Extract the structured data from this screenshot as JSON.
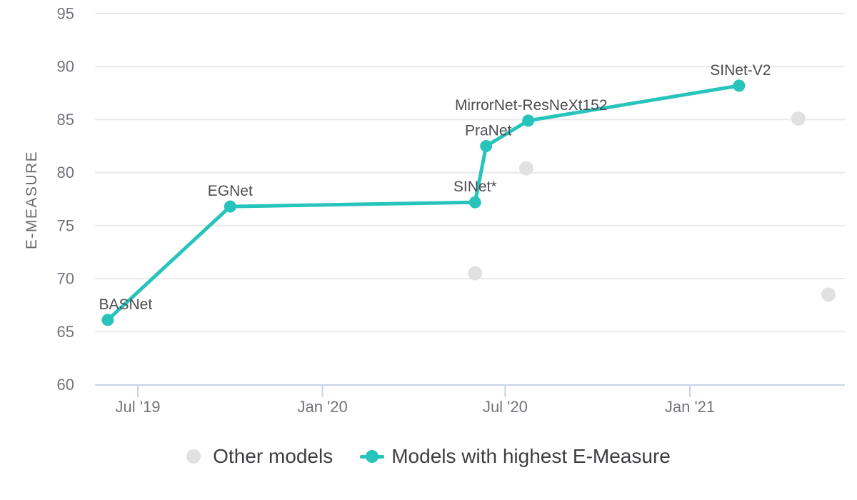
{
  "chart_data": {
    "type": "line",
    "title": "",
    "xlabel": "",
    "ylabel": "E-MEASURE",
    "ylim": [
      60,
      95
    ],
    "grid": true,
    "legend_position": "bottom",
    "y_ticks": [
      95,
      90,
      85,
      80,
      75,
      70,
      65,
      60
    ],
    "x_ticks": [
      {
        "label": "Jul '19",
        "date": "2019-07-01"
      },
      {
        "label": "Jan '20",
        "date": "2020-01-01"
      },
      {
        "label": "Jul '20",
        "date": "2020-07-01"
      },
      {
        "label": "Jan '21",
        "date": "2021-01-01"
      }
    ],
    "colors": {
      "highlight_series": "#27c4bc",
      "other_models": "#e1e1e1",
      "gridline": "#e9e9e9",
      "axis_line": "#c7d3e8",
      "tick_text": "#73737d",
      "point_label_text": "#4c4c52",
      "legend_text": "#3e3e42",
      "axis_title_text": "#68686f"
    },
    "series": [
      {
        "name": "Models with highest E-Measure",
        "mode": "line+markers",
        "color": "#27c4bc",
        "points": [
          {
            "label": "BASNet",
            "date": "2019-06-01",
            "value": 66.1,
            "label_dx": 25
          },
          {
            "label": "EGNet",
            "date": "2019-10-01",
            "value": 76.8,
            "label_dx": 0
          },
          {
            "label": "SINet*",
            "date": "2020-06-01",
            "value": 77.2,
            "label_dx": 0
          },
          {
            "label": "PraNet",
            "date": "2020-06-12",
            "value": 82.5,
            "label_dx": 3
          },
          {
            "label": "MirrorNet-ResNeXt152",
            "date": "2020-07-24",
            "value": 84.9,
            "label_dx": 4
          },
          {
            "label": "SINet-V2",
            "date": "2021-02-19",
            "value": 88.2,
            "label_dx": 2
          }
        ]
      },
      {
        "name": "Other models",
        "mode": "markers",
        "color": "#e1e1e1",
        "points": [
          {
            "date": "2020-06-01",
            "value": 70.5
          },
          {
            "date": "2020-07-22",
            "value": 80.4
          },
          {
            "date": "2021-04-19",
            "value": 85.1
          },
          {
            "date": "2021-05-19",
            "value": 68.5
          }
        ]
      }
    ],
    "legend": [
      {
        "label": "Other models",
        "marker": "dot",
        "color": "#e1e1e1"
      },
      {
        "label": "Models with highest E-Measure",
        "marker": "line-dot",
        "color": "#27c4bc"
      }
    ]
  }
}
